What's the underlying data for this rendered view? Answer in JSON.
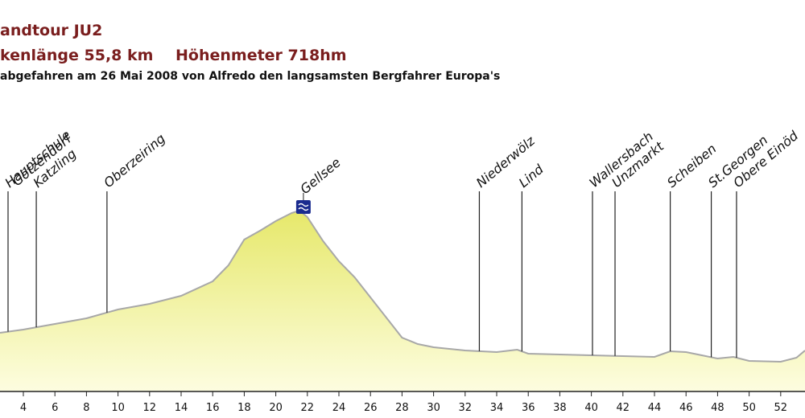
{
  "chart_data": {
    "type": "area",
    "title": "andtour JU2",
    "subtitles": [
      "kenlänge 55,8 km",
      "Höhenmeter 718hm"
    ],
    "note": "abgefahren am 26 Mai 2008 von Alfredo den langsamsten Bergfahrer Europa's",
    "x": [
      2.52,
      4,
      6,
      8,
      10,
      12,
      14,
      16,
      17,
      18,
      19,
      20,
      21,
      21.5,
      22,
      23,
      24,
      25,
      26,
      27,
      28,
      29,
      30,
      32,
      34,
      35.3,
      36,
      38,
      40,
      42,
      44,
      45,
      46,
      47,
      48,
      49,
      50,
      52,
      53,
      53.54
    ],
    "values": [
      746,
      754,
      768,
      782,
      804,
      818,
      838,
      874,
      914,
      978,
      1000,
      1024,
      1044,
      1050,
      1034,
      974,
      924,
      884,
      834,
      784,
      734,
      718,
      710,
      702,
      698,
      704,
      694,
      692,
      690,
      688,
      686,
      700,
      698,
      690,
      682,
      686,
      676,
      674,
      684,
      702
    ],
    "color": "#eef07a",
    "line_color": "#a8a8a8",
    "xlim": [
      2.52,
      53.54
    ],
    "ylim": [
      600,
      1400
    ],
    "xticks": [
      4,
      6,
      8,
      10,
      12,
      14,
      16,
      18,
      20,
      22,
      24,
      26,
      28,
      30,
      32,
      34,
      36,
      38,
      40,
      42,
      44,
      46,
      48,
      50,
      52
    ],
    "waypoints": [
      {
        "label": "Hauptschule",
        "x": 3.03,
        "marker": "line"
      },
      {
        "label": "Götzendorf",
        "x": 3.3,
        "marker": "none"
      },
      {
        "label": "Katzling",
        "x": 4.82,
        "marker": "line"
      },
      {
        "label": "Oberzeiring",
        "x": 9.3,
        "marker": "line"
      },
      {
        "label": "Gellsee",
        "x": 21.75,
        "marker": "icon"
      },
      {
        "label": "Niederwölz",
        "x": 32.9,
        "marker": "line"
      },
      {
        "label": "Lind",
        "x": 35.6,
        "marker": "line"
      },
      {
        "label": "Wallersbach",
        "x": 40.07,
        "marker": "line"
      },
      {
        "label": "Unzmarkt",
        "x": 41.5,
        "marker": "line"
      },
      {
        "label": "Scheiben",
        "x": 45.0,
        "marker": "line"
      },
      {
        "label": "St.Georgen",
        "x": 47.6,
        "marker": "line"
      },
      {
        "label": "Obere Einöd",
        "x": 49.2,
        "marker": "line"
      }
    ]
  }
}
